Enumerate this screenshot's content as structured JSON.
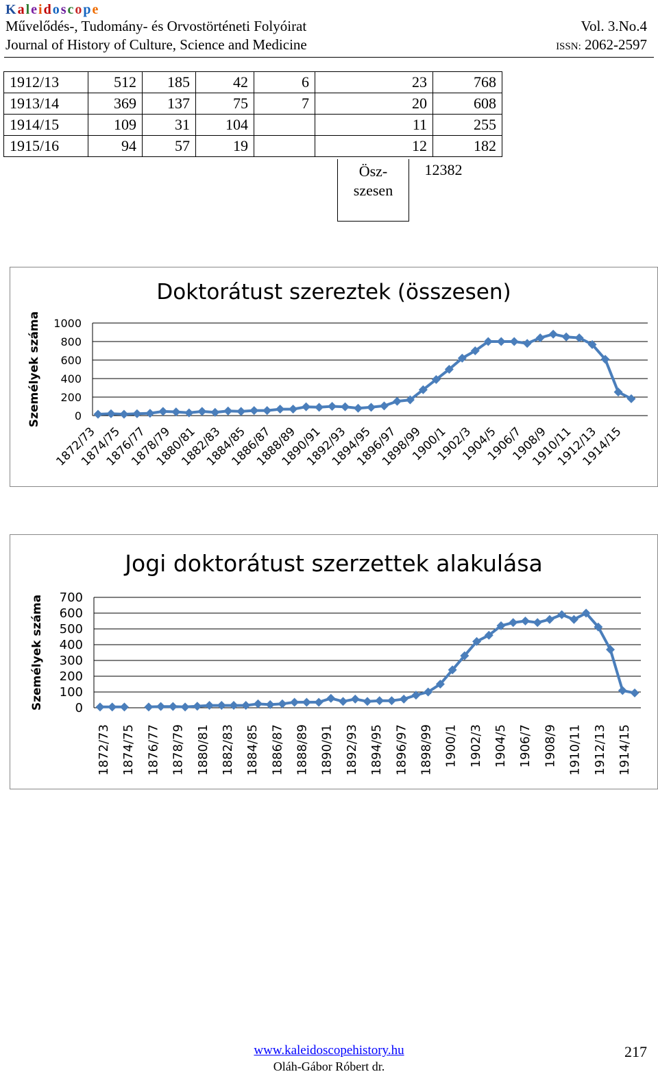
{
  "header": {
    "brand_letters": [
      "K",
      "a",
      "l",
      "e",
      "i",
      "d",
      "o",
      "s",
      "c",
      "o",
      "p",
      "e"
    ],
    "brand_colors": [
      "#1f4e9c",
      "#c00000",
      "#2e7d32",
      "#7b1fa2",
      "#e65100",
      "#c00000",
      "#1565c0",
      "#6a1b9a",
      "#2e7d32",
      "#c62828",
      "#1565c0",
      "#ef6c00"
    ],
    "line1": "Művelődés-, Tudomány- és Orvostörténeti Folyóirat",
    "line2": "Journal of History of Culture, Science and Medicine",
    "volume": "Vol. 3.No.4",
    "issn_label": "ISSN:",
    "issn_value": "2062-2597"
  },
  "table": {
    "rows": [
      [
        "1912/13",
        "512",
        "185",
        "42",
        "6",
        "23",
        "768"
      ],
      [
        "1913/14",
        "369",
        "137",
        "75",
        "7",
        "20",
        "608"
      ],
      [
        "1914/15",
        "109",
        "31",
        "104",
        "",
        "11",
        "255"
      ],
      [
        "1915/16",
        "94",
        "57",
        "19",
        "",
        "12",
        "182"
      ]
    ],
    "total_label_1": "Ösz-",
    "total_label_2": "szesen",
    "total_value": "12382"
  },
  "chart_data": [
    {
      "type": "line",
      "title": "Doktorátust szereztek (összesen)",
      "ylabel": "Személyek száma",
      "ylim": [
        0,
        1000
      ],
      "yticks": [
        "1000",
        "800",
        "600",
        "400",
        "200",
        "0"
      ],
      "tick_labels": [
        "1872/73",
        "1874/75",
        "1876/77",
        "1878/79",
        "1880/81",
        "1882/83",
        "1884/85",
        "1886/87",
        "1888/89",
        "1890/91",
        "1892/93",
        "1894/95",
        "1896/97",
        "1898/99",
        "1900/1",
        "1902/3",
        "1904/5",
        "1906/7",
        "1908/9",
        "1910/11",
        "1912/13",
        "1914/15"
      ],
      "values": [
        15,
        20,
        15,
        20,
        25,
        45,
        40,
        30,
        45,
        35,
        50,
        45,
        55,
        55,
        70,
        70,
        95,
        90,
        100,
        95,
        80,
        90,
        105,
        155,
        170,
        280,
        390,
        500,
        620,
        700,
        800,
        800,
        800,
        780,
        840,
        880,
        850,
        840,
        768,
        608,
        255,
        182
      ],
      "grid": true,
      "color": "#4a7ebb"
    },
    {
      "type": "line",
      "title": "Jogi doktorátust szerzettek alakulása",
      "ylabel": "Személyek száma",
      "ylim": [
        0,
        700
      ],
      "yticks": [
        "700",
        "600",
        "500",
        "400",
        "300",
        "200",
        "100",
        "0"
      ],
      "tick_labels": [
        "1872/73",
        "1874/75",
        "1876/77",
        "1878/79",
        "1880/81",
        "1882/83",
        "1884/85",
        "1886/87",
        "1888/89",
        "1890/91",
        "1892/93",
        "1894/95",
        "1896/97",
        "1898/99",
        "1900/1",
        "1902/3",
        "1904/5",
        "1906/7",
        "1908/9",
        "1910/11",
        "1912/13",
        "1914/15"
      ],
      "values": [
        5,
        5,
        5,
        null,
        5,
        8,
        8,
        5,
        10,
        15,
        15,
        15,
        15,
        25,
        20,
        25,
        35,
        35,
        35,
        60,
        40,
        55,
        40,
        45,
        45,
        55,
        80,
        100,
        150,
        240,
        330,
        420,
        460,
        520,
        540,
        550,
        540,
        560,
        590,
        560,
        600,
        512,
        369,
        109,
        94
      ],
      "grid": true,
      "color": "#4a7ebb"
    }
  ],
  "footer": {
    "link": "www.kaleidoscopehistory.hu",
    "author": "Oláh-Gábor Róbert dr.",
    "page": "217"
  }
}
